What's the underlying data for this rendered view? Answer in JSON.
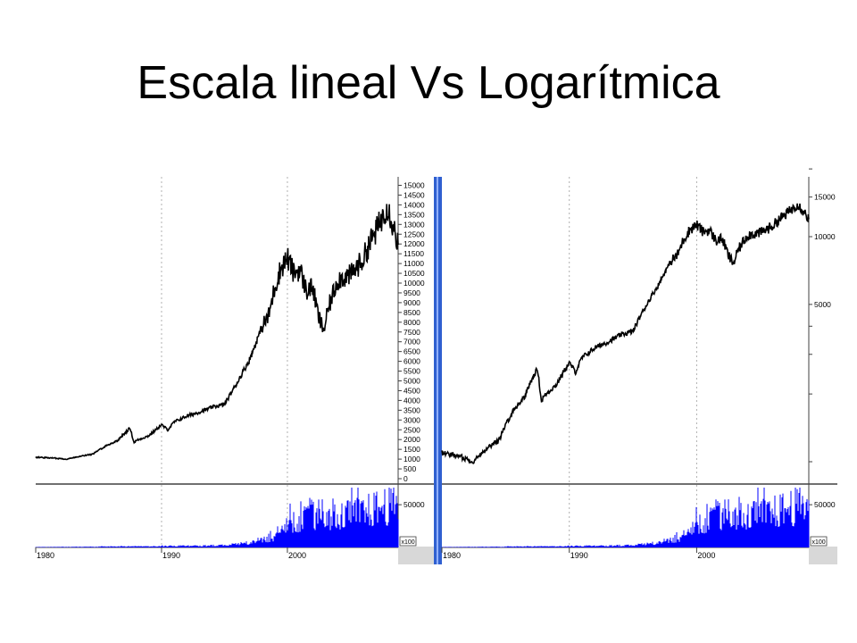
{
  "slide": {
    "title": "Escala lineal Vs Logarítmica"
  },
  "colors": {
    "price_line": "#000000",
    "volume_bars": "#0000ff",
    "divider_blue": "#3060d0",
    "grid": "#b0b0b0",
    "panel_separator": "#404040",
    "scroll_area": "#d8d8d8"
  },
  "chart_data": [
    {
      "type": "line",
      "name": "linear-chart",
      "scale": "linear",
      "x_ticks": [
        "1980",
        "1990",
        "2000"
      ],
      "x_range": [
        1980.0,
        2008.8
      ],
      "ylim": [
        0,
        15000
      ],
      "y_ticks": [
        "0",
        "500",
        "1000",
        "1500",
        "2000",
        "2500",
        "3000",
        "3500",
        "4000",
        "4500",
        "5000",
        "5500",
        "6000",
        "6500",
        "7000",
        "7500",
        "8000",
        "8500",
        "9000",
        "9500",
        "10000",
        "10500",
        "11000",
        "11500",
        "12000",
        "12500",
        "13000",
        "13500",
        "14000",
        "14500",
        "15000"
      ],
      "grid": "vertical dotted at decade ticks",
      "price_series": {
        "x": [
          1980.0,
          1981.5,
          1982.5,
          1983.5,
          1984.5,
          1985.5,
          1986.5,
          1987.5,
          1987.8,
          1988.0,
          1989.0,
          1990.0,
          1990.5,
          1991.0,
          1992.0,
          1993.0,
          1994.0,
          1995.0,
          1996.0,
          1997.0,
          1998.0,
          1998.5,
          1999.0,
          1999.5,
          2000.0,
          2000.5,
          2001.0,
          2001.5,
          2002.0,
          2002.5,
          2002.9,
          2003.3,
          2004.0,
          2005.0,
          2006.0,
          2006.5,
          2007.0,
          2007.5,
          2007.9,
          2008.3,
          2008.8
        ],
        "y": [
          1100,
          1050,
          1000,
          1150,
          1250,
          1650,
          1950,
          2600,
          1850,
          1950,
          2200,
          2750,
          2500,
          2900,
          3200,
          3400,
          3650,
          3800,
          4900,
          6100,
          7800,
          8300,
          9800,
          10800,
          11300,
          10500,
          10700,
          9600,
          9800,
          8200,
          7600,
          8800,
          10200,
          10400,
          11200,
          12000,
          12600,
          13300,
          14000,
          13200,
          12000
        ]
      },
      "volume_label": "50000",
      "volume_unit": "x100",
      "volume_x": [
        1980,
        1982,
        1984,
        1986,
        1988,
        1990,
        1992,
        1994,
        1995,
        1996,
        1997,
        1998,
        1999,
        2000,
        2001,
        2002,
        2003,
        2004,
        2005,
        2006,
        2007,
        2008
      ],
      "volume_y": [
        500,
        600,
        800,
        1200,
        1500,
        1800,
        2000,
        2500,
        3000,
        4000,
        6000,
        10000,
        15000,
        30000,
        40000,
        45000,
        45000,
        40000,
        42000,
        45000,
        50000,
        55000
      ]
    },
    {
      "type": "line",
      "name": "log-chart",
      "scale": "log",
      "x_ticks": [
        "1980",
        "1990",
        "2000"
      ],
      "x_range": [
        1980.0,
        2008.8
      ],
      "y_ticks": [
        "5000",
        "10000",
        "15000"
      ],
      "grid": "vertical dotted at decade ticks",
      "price_series": {
        "x": [
          1980.0,
          1981.5,
          1982.5,
          1983.5,
          1984.5,
          1985.5,
          1986.5,
          1987.5,
          1987.8,
          1988.0,
          1989.0,
          1990.0,
          1990.5,
          1991.0,
          1992.0,
          1993.0,
          1994.0,
          1995.0,
          1996.0,
          1997.0,
          1998.0,
          1998.5,
          1999.0,
          1999.5,
          2000.0,
          2000.5,
          2001.0,
          2001.5,
          2002.0,
          2002.5,
          2002.9,
          2003.3,
          2004.0,
          2005.0,
          2006.0,
          2006.5,
          2007.0,
          2007.5,
          2007.9,
          2008.3,
          2008.8
        ],
        "y": [
          1100,
          1050,
          1000,
          1150,
          1250,
          1650,
          1950,
          2600,
          1850,
          1950,
          2200,
          2750,
          2500,
          2900,
          3200,
          3400,
          3650,
          3800,
          4900,
          6100,
          7800,
          8300,
          9800,
          10800,
          11300,
          10500,
          10700,
          9600,
          9800,
          8200,
          7600,
          8800,
          10200,
          10400,
          11200,
          12000,
          12600,
          13300,
          14000,
          13200,
          12000
        ]
      },
      "volume_label": "50000",
      "volume_unit": "x100",
      "volume_x": [
        1980,
        1982,
        1984,
        1986,
        1988,
        1990,
        1992,
        1994,
        1995,
        1996,
        1997,
        1998,
        1999,
        2000,
        2001,
        2002,
        2003,
        2004,
        2005,
        2006,
        2007,
        2008
      ],
      "volume_y": [
        500,
        600,
        800,
        1200,
        1500,
        1800,
        2000,
        2500,
        3000,
        4000,
        6000,
        10000,
        15000,
        30000,
        40000,
        45000,
        45000,
        40000,
        42000,
        45000,
        50000,
        55000
      ]
    }
  ]
}
